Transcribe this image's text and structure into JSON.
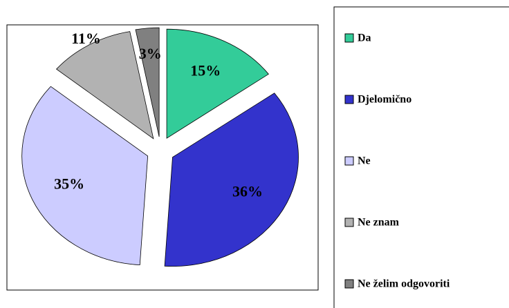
{
  "chart_data": {
    "type": "pie",
    "categories": [
      "Da",
      "Djelomično",
      "Ne",
      "Ne znam",
      "Ne želim odgovoriti"
    ],
    "values": [
      15,
      36,
      35,
      11,
      3
    ],
    "value_labels": [
      "15%",
      "36%",
      "35%",
      "11%",
      "3%"
    ],
    "colors": [
      "#33cc99",
      "#3333cc",
      "#ccccff",
      "#b2b2b2",
      "#808080"
    ],
    "legend": "right"
  }
}
